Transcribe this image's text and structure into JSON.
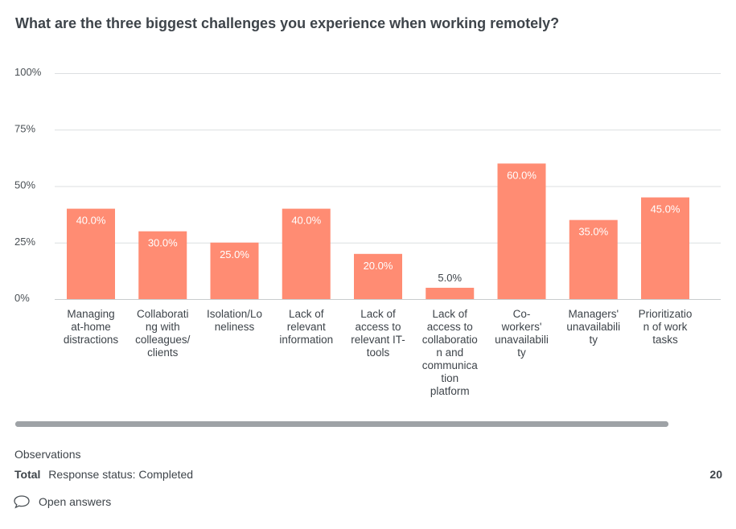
{
  "question": {
    "title": "What are the three biggest challenges you experience when working remotely?"
  },
  "chart_data": {
    "type": "bar",
    "title": "What are the three biggest challenges you experience when working remotely?",
    "categories": [
      "Managing at-home distractions",
      "Collaborating with colleagues/ clients",
      "Isolation/Loneliness",
      "Lack of relevant information",
      "Lack of access to relevant IT-tools",
      "Lack of access to collaboration and communication platform",
      "Co-workers' unavailability",
      "Managers' unavailability",
      "Prioritization of work tasks"
    ],
    "category_lines": [
      [
        "Managing",
        "at-home",
        "distractions"
      ],
      [
        "Collaborati",
        "ng with",
        "colleagues/",
        "clients"
      ],
      [
        "Isolation/Lo",
        "neliness"
      ],
      [
        "Lack of",
        "relevant",
        "information"
      ],
      [
        "Lack of",
        "access to",
        "relevant IT-",
        "tools"
      ],
      [
        "Lack of",
        "access to",
        "collaboratio",
        "n and",
        "communica",
        "tion",
        "platform"
      ],
      [
        "Co-",
        "workers'",
        "unavailabili",
        "ty"
      ],
      [
        "Managers'",
        "unavailabili",
        "ty"
      ],
      [
        "Prioritizatio",
        "n of work",
        "tasks"
      ]
    ],
    "values": [
      40.0,
      30.0,
      25.0,
      40.0,
      20.0,
      5.0,
      60.0,
      35.0,
      45.0
    ],
    "value_labels": [
      "40.0%",
      "30.0%",
      "25.0%",
      "40.0%",
      "20.0%",
      "5.0%",
      "60.0%",
      "35.0%",
      "45.0%"
    ],
    "ylim": [
      0,
      100
    ],
    "yticks": [
      0,
      25,
      50,
      75,
      100
    ],
    "ytick_labels": [
      "0%",
      "25%",
      "50%",
      "75%",
      "100%"
    ],
    "grid": true,
    "xlabel": "",
    "ylabel": "",
    "bar_color": "#ff8c73"
  },
  "footer": {
    "observations_label": "Observations",
    "total_label": "Total",
    "response_status": "Response status: Completed",
    "total_count": "20",
    "open_answers_label": "Open answers"
  },
  "icons": {
    "open_answers": "speech-bubble-icon"
  }
}
